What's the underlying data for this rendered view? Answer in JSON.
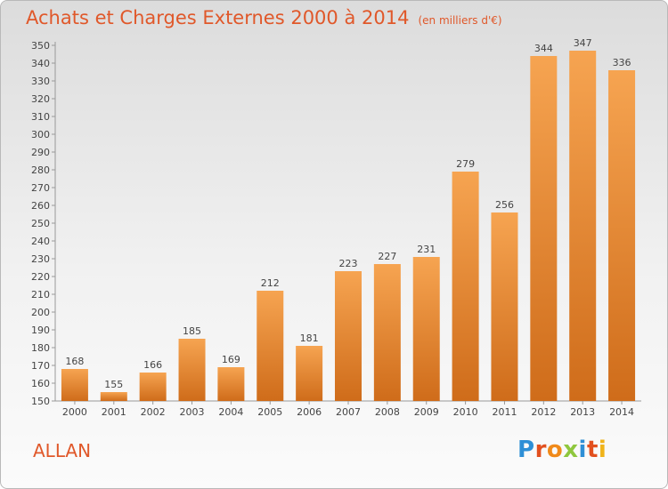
{
  "header": {
    "title": "Achats et Charges Externes 2000 à 2014",
    "unit": "(en milliers d'€)"
  },
  "footer": {
    "town": "ALLAN"
  },
  "logo": {
    "letters": [
      "P",
      "r",
      "o",
      "x",
      "i",
      "t",
      "i"
    ],
    "colors": [
      "#2e8fd6",
      "#e2501f",
      "#f08a1a",
      "#8fc73e",
      "#2e8fd6",
      "#e2501f",
      "#f0b31a"
    ]
  },
  "chart_data": {
    "type": "bar",
    "title": "Achats et Charges Externes 2000 à 2014",
    "subtitle": "(en milliers d'€)",
    "categories": [
      "2000",
      "2001",
      "2002",
      "2003",
      "2004",
      "2005",
      "2006",
      "2007",
      "2008",
      "2009",
      "2010",
      "2011",
      "2012",
      "2013",
      "2014"
    ],
    "values": [
      168,
      155,
      166,
      185,
      169,
      212,
      181,
      223,
      227,
      231,
      279,
      256,
      344,
      347,
      336
    ],
    "ylim": [
      150,
      350
    ],
    "ytick_step": 10,
    "grid": false,
    "bar_color_top": "#f6a451",
    "bar_color_bottom": "#cf6c1a"
  }
}
